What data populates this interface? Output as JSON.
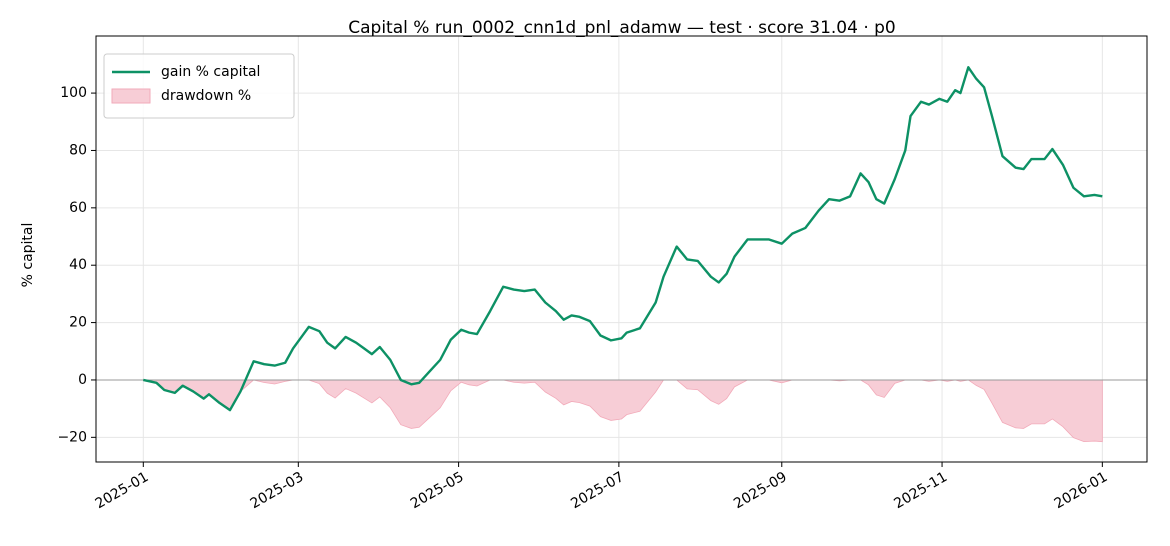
{
  "chart_data": {
    "type": "line",
    "title": "Capital % run_0002_cnn1d_pnl_adamw — test · score 31.04 · p0",
    "ylabel": "% capital",
    "x": [
      0,
      5,
      8,
      12,
      15,
      19,
      23,
      25,
      29,
      33,
      37,
      42,
      46,
      50,
      54,
      57,
      61,
      63,
      67,
      70,
      73,
      77,
      81,
      84,
      87,
      90,
      94,
      98,
      102,
      105,
      109,
      113,
      117,
      121,
      124,
      127,
      132,
      137,
      141,
      145,
      149,
      153,
      157,
      160,
      163,
      166,
      170,
      174,
      178,
      182,
      184,
      189,
      195,
      198,
      203,
      207,
      211,
      216,
      219,
      222,
      225,
      230,
      235,
      238,
      243,
      247,
      252,
      257,
      261,
      265,
      269,
      273,
      276,
      279,
      282,
      286,
      290,
      292,
      296,
      299,
      303,
      306,
      309,
      311,
      314,
      317,
      320,
      323,
      327,
      332,
      335,
      338,
      343,
      346,
      350,
      354,
      358,
      362,
      365
    ],
    "series": [
      {
        "name": "gain % capital",
        "type": "line",
        "color": "#0d9165",
        "values": [
          0,
          -1,
          -3.5,
          -4.5,
          -2,
          -4,
          -6.5,
          -5,
          -8,
          -10.5,
          -4,
          6.5,
          5.5,
          5,
          6,
          11,
          16,
          18.5,
          17,
          13,
          11,
          15,
          13,
          11,
          9,
          11.5,
          7,
          0,
          -1.5,
          -1,
          3,
          7,
          14,
          17.5,
          16.5,
          16,
          24,
          32.5,
          31.5,
          31,
          31.5,
          27,
          24,
          21,
          22.5,
          22,
          20.5,
          15.5,
          13.8,
          14.5,
          16.5,
          18,
          27,
          36,
          46.5,
          42,
          41.5,
          36,
          34,
          37,
          43,
          49,
          49,
          49,
          47.5,
          51,
          53,
          59,
          63,
          62.5,
          64,
          72,
          69,
          63,
          61.5,
          70,
          80,
          92,
          97,
          96,
          98,
          97,
          101,
          100,
          109,
          105,
          102,
          92,
          78,
          74,
          73.5,
          77,
          77,
          80.5,
          75,
          67,
          64,
          64.5,
          64
        ]
      },
      {
        "name": "drawdown %",
        "type": "area",
        "color": "#f7cdd6",
        "values": [
          0,
          -1,
          -3.5,
          -4.5,
          -2,
          -4,
          -6.5,
          -5,
          -8,
          -10.5,
          -4,
          0,
          -0.9,
          -1.4,
          -0.5,
          0,
          0,
          0,
          -1.3,
          -4.6,
          -6.3,
          -3,
          -4.6,
          -6.3,
          -8,
          -5.9,
          -9.7,
          -15.6,
          -16.9,
          -16.5,
          -13.1,
          -9.7,
          -3.8,
          -0.8,
          -1.7,
          -2.1,
          0,
          0,
          -0.8,
          -1.1,
          -0.8,
          -4.2,
          -6.4,
          -8.7,
          -7.5,
          -7.9,
          -9.1,
          -12.8,
          -14.1,
          -13.6,
          -12.1,
          -10.9,
          -4.2,
          0,
          0,
          -3.1,
          -3.4,
          -7.2,
          -8.5,
          -6.5,
          -2.4,
          0,
          0,
          0,
          -1,
          0,
          0,
          0,
          0,
          -0.3,
          0,
          0,
          -1.7,
          -5.2,
          -6.1,
          -1.2,
          0,
          0,
          0,
          -0.5,
          0,
          -0.5,
          0,
          -0.5,
          0,
          -1.9,
          -3.3,
          -8.1,
          -14.8,
          -16.7,
          -16.9,
          -15.3,
          -15.3,
          -13.6,
          -16.3,
          -20.1,
          -21.5,
          -21.3,
          -21.5
        ]
      }
    ],
    "xlim": [
      -18,
      382
    ],
    "xticks": [
      {
        "value": 0,
        "label": "2025-01"
      },
      {
        "value": 59,
        "label": "2025-03"
      },
      {
        "value": 120,
        "label": "2025-05"
      },
      {
        "value": 181,
        "label": "2025-07"
      },
      {
        "value": 243,
        "label": "2025-09"
      },
      {
        "value": 304,
        "label": "2025-11"
      },
      {
        "value": 365,
        "label": "2026-01"
      }
    ],
    "ylim": [
      -28.6,
      119.9
    ],
    "yticks": [
      {
        "value": -20,
        "label": "−20"
      },
      0,
      20,
      40,
      60,
      80,
      100
    ],
    "grid": true,
    "legend": "upper left"
  }
}
